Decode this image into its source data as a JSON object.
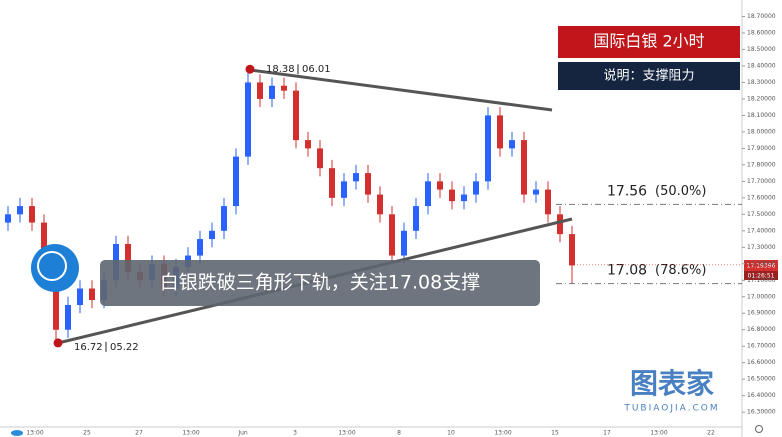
{
  "chart_data": {
    "type": "candlestick",
    "title": "国际白银  2小时",
    "subtitle": "说明：支撑阻力",
    "annotation": "白银跌破三角形下轨，关注17.08支撑",
    "watermark": "图表家",
    "watermark_sub": "TUBIAOJIA.COM",
    "up_color": "#2962ff",
    "down_color": "#d32f2f",
    "open": [
      17.45,
      17.5,
      17.55,
      17.45,
      17.2,
      16.8,
      16.95,
      17.05,
      16.98,
      17.1,
      17.32,
      17.15,
      17.1,
      17.2,
      17.05,
      17.18,
      17.25,
      17.35,
      17.4,
      17.55,
      17.85,
      18.3,
      18.2,
      18.28,
      18.25,
      17.95,
      17.9,
      17.78,
      17.6,
      17.7,
      17.75,
      17.62,
      17.5,
      17.25,
      17.4,
      17.55,
      17.7,
      17.65,
      17.58,
      17.62,
      17.7,
      18.1,
      17.9,
      17.95,
      17.62,
      17.65,
      17.5,
      17.38
    ],
    "high": [
      17.55,
      17.6,
      17.6,
      17.5,
      17.25,
      17.0,
      17.1,
      17.1,
      17.15,
      17.37,
      17.37,
      17.2,
      17.25,
      17.25,
      17.23,
      17.3,
      17.4,
      17.45,
      17.6,
      17.9,
      18.38,
      18.35,
      18.33,
      18.33,
      18.3,
      18.0,
      17.95,
      17.83,
      17.75,
      17.8,
      17.8,
      17.67,
      17.55,
      17.45,
      17.6,
      17.75,
      17.75,
      17.7,
      17.67,
      17.75,
      18.15,
      18.15,
      18.0,
      18.0,
      17.7,
      17.7,
      17.55,
      17.43
    ],
    "low": [
      17.4,
      17.45,
      17.4,
      17.15,
      16.72,
      16.75,
      16.9,
      16.93,
      16.93,
      17.05,
      17.1,
      17.05,
      17.05,
      17.0,
      17.0,
      17.13,
      17.2,
      17.3,
      17.35,
      17.5,
      17.8,
      18.15,
      18.15,
      18.2,
      17.9,
      17.85,
      17.73,
      17.55,
      17.55,
      17.65,
      17.57,
      17.45,
      17.2,
      17.2,
      17.35,
      17.5,
      17.6,
      17.53,
      17.53,
      17.57,
      17.65,
      17.85,
      17.85,
      17.57,
      17.57,
      17.45,
      17.33,
      17.08
    ],
    "close": [
      17.5,
      17.55,
      17.45,
      17.2,
      16.8,
      16.95,
      17.05,
      16.98,
      17.1,
      17.32,
      17.15,
      17.1,
      17.2,
      17.05,
      17.18,
      17.25,
      17.35,
      17.4,
      17.55,
      17.85,
      18.3,
      18.2,
      18.28,
      18.25,
      17.95,
      17.9,
      17.78,
      17.6,
      17.7,
      17.75,
      17.62,
      17.5,
      17.25,
      17.4,
      17.55,
      17.7,
      17.65,
      17.58,
      17.62,
      17.7,
      18.1,
      17.9,
      17.95,
      17.62,
      17.65,
      17.5,
      17.38,
      17.19
    ],
    "points": [
      {
        "price": 18.38,
        "date": "06.01"
      },
      {
        "price": 16.72,
        "date": "05.22"
      }
    ],
    "levels": [
      {
        "price": 17.56,
        "label": "(50.0%)"
      },
      {
        "price": 17.08,
        "label": "(78.6%)"
      }
    ],
    "last_price": 17.19396,
    "countdown": "01:26:51",
    "x_labels": [
      "13:00",
      "25",
      "27",
      "13:00",
      "Jun",
      "3",
      "13:00",
      "8",
      "10",
      "13:00",
      "15",
      "17",
      "13:00",
      "22"
    ],
    "ylim": [
      16.21,
      18.8
    ],
    "yticks": [
      {
        "value": 16.3,
        "label": "16.30000"
      },
      {
        "value": 16.4,
        "label": "16.40000"
      },
      {
        "value": 16.5,
        "label": "16.50000"
      },
      {
        "value": 16.6,
        "label": "16.60000"
      },
      {
        "value": 16.7,
        "label": "16.70000"
      },
      {
        "value": 16.8,
        "label": "16.80000"
      },
      {
        "value": 16.9,
        "label": "16.90000"
      },
      {
        "value": 17.0,
        "label": "17.00000"
      },
      {
        "value": 17.1,
        "label": "17.10000"
      },
      {
        "value": 17.2,
        "label": "17.20000"
      },
      {
        "value": 17.3,
        "label": "17.30000"
      },
      {
        "value": 17.4,
        "label": "17.40000"
      },
      {
        "value": 17.5,
        "label": "17.50000"
      },
      {
        "value": 17.6,
        "label": "17.60000"
      },
      {
        "value": 17.7,
        "label": "17.70000"
      },
      {
        "value": 17.8,
        "label": "17.80000"
      },
      {
        "value": 17.9,
        "label": "17.90000"
      },
      {
        "value": 18.0,
        "label": "18.00000"
      },
      {
        "value": 18.1,
        "label": "18.10000"
      },
      {
        "value": 18.2,
        "label": "18.20000"
      },
      {
        "value": 18.3,
        "label": "18.30000"
      },
      {
        "value": 18.4,
        "label": "18.40000"
      },
      {
        "value": 18.5,
        "label": "18.50000"
      },
      {
        "value": 18.6,
        "label": "18.60000"
      },
      {
        "value": 18.7,
        "label": "18.70000"
      }
    ]
  }
}
